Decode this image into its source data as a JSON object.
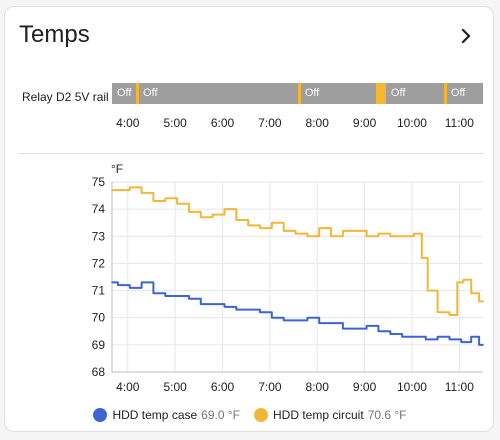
{
  "card": {
    "title": "Temps",
    "chevron_icon": "chevron-right-icon"
  },
  "timeline": {
    "entity": "Relay D2 5V rail",
    "off_color": "#9e9e9e",
    "on_color": "#f5b731",
    "segments": [
      {
        "state": "off",
        "label": "Off",
        "start": "3:40",
        "end": "4:10"
      },
      {
        "state": "on",
        "label": "",
        "start": "4:10",
        "end": "4:13"
      },
      {
        "state": "off",
        "label": "Off",
        "start": "4:13",
        "end": "7:35"
      },
      {
        "state": "on",
        "label": "",
        "start": "7:35",
        "end": "7:38"
      },
      {
        "state": "off",
        "label": "Off",
        "start": "7:38",
        "end": "9:15"
      },
      {
        "state": "on",
        "label": "",
        "start": "9:15",
        "end": "9:27"
      },
      {
        "state": "off",
        "label": "Off",
        "start": "9:27",
        "end": "10:40"
      },
      {
        "state": "on",
        "label": "",
        "start": "10:40",
        "end": "10:43"
      },
      {
        "state": "off",
        "label": "Off",
        "start": "10:43",
        "end": "11:30"
      }
    ],
    "ticks": [
      "4:00",
      "5:00",
      "6:00",
      "7:00",
      "8:00",
      "9:00",
      "10:00",
      "11:00"
    ]
  },
  "chart_data": {
    "type": "line",
    "unit": "°F",
    "x_ticks": [
      "4:00",
      "5:00",
      "6:00",
      "7:00",
      "8:00",
      "9:00",
      "10:00",
      "11:00"
    ],
    "xlim": [
      "3:40",
      "11:30"
    ],
    "ylim": [
      68,
      75
    ],
    "y_ticks": [
      68,
      69,
      70,
      71,
      72,
      73,
      74,
      75
    ],
    "grid": true,
    "legend_placement": "bottom",
    "series": [
      {
        "name": "HDD temp case",
        "current": "69.0 °F",
        "color": "#3e64d3",
        "x": [
          "3:40",
          "3:55",
          "4:10",
          "4:25",
          "4:40",
          "4:55",
          "5:10",
          "5:25",
          "5:40",
          "5:55",
          "6:10",
          "6:25",
          "6:40",
          "6:55",
          "7:10",
          "7:25",
          "7:40",
          "7:55",
          "8:10",
          "8:25",
          "8:40",
          "8:55",
          "9:10",
          "9:25",
          "9:40",
          "9:55",
          "10:10",
          "10:25",
          "10:40",
          "10:55",
          "11:10",
          "11:20",
          "11:30"
        ],
        "values": [
          71.3,
          71.2,
          71.1,
          71.3,
          70.9,
          70.8,
          70.8,
          70.7,
          70.5,
          70.5,
          70.4,
          70.3,
          70.3,
          70.2,
          70.0,
          69.9,
          69.9,
          70.0,
          69.8,
          69.8,
          69.6,
          69.6,
          69.7,
          69.5,
          69.4,
          69.3,
          69.3,
          69.2,
          69.3,
          69.2,
          69.1,
          69.3,
          69.0
        ]
      },
      {
        "name": "HDD temp circuit",
        "current": "70.6 °F",
        "color": "#f0b73b",
        "x": [
          "3:40",
          "3:55",
          "4:10",
          "4:25",
          "4:40",
          "4:55",
          "5:10",
          "5:25",
          "5:40",
          "5:55",
          "6:10",
          "6:25",
          "6:40",
          "6:55",
          "7:10",
          "7:25",
          "7:40",
          "7:55",
          "8:10",
          "8:25",
          "8:40",
          "8:55",
          "9:10",
          "9:25",
          "9:40",
          "9:55",
          "10:10",
          "10:15",
          "10:25",
          "10:40",
          "10:55",
          "11:00",
          "11:10",
          "11:20",
          "11:30"
        ],
        "values": [
          74.7,
          74.7,
          74.8,
          74.6,
          74.3,
          74.4,
          74.2,
          73.9,
          73.7,
          73.8,
          74.0,
          73.6,
          73.4,
          73.3,
          73.5,
          73.2,
          73.1,
          73.0,
          73.3,
          73.0,
          73.2,
          73.2,
          73.0,
          73.1,
          73.0,
          73.0,
          73.1,
          72.2,
          71.0,
          70.2,
          70.1,
          71.3,
          71.4,
          70.9,
          70.6
        ]
      }
    ]
  }
}
